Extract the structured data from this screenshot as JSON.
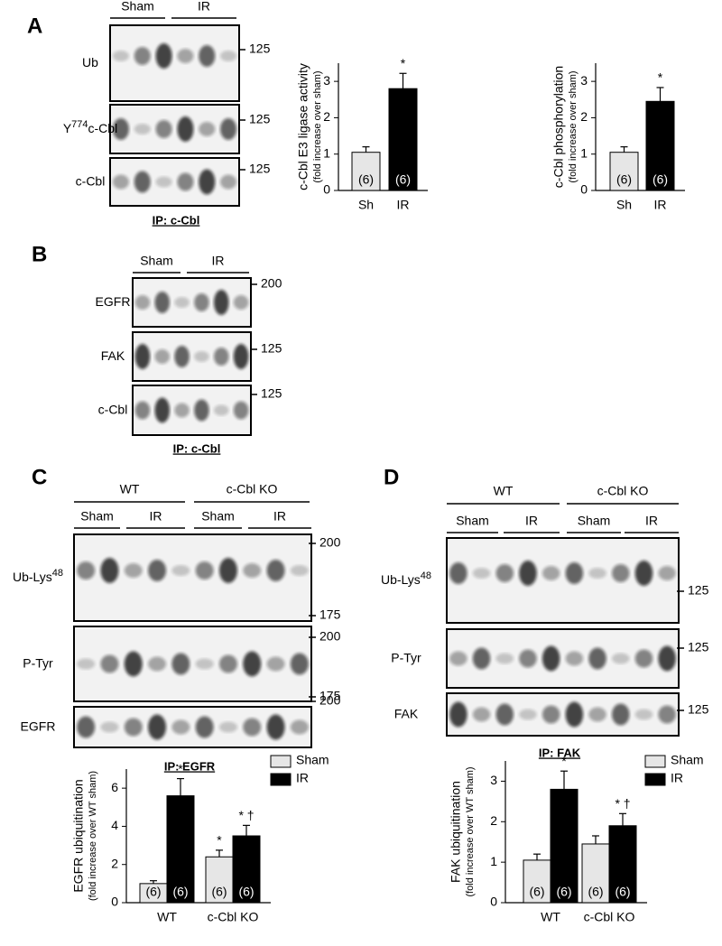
{
  "blots": [
    {
      "letter": "A",
      "groups": [
        {
          "label": "Sham"
        },
        {
          "label": "IR"
        }
      ],
      "rows": [
        {
          "label": "Ub",
          "markers": [
            "125"
          ]
        },
        {
          "label": "Y",
          "sup": "774",
          "suffix": "c-Cbl",
          "markers": [
            "125"
          ]
        },
        {
          "label": "c-Cbl",
          "markers": [
            "125"
          ]
        }
      ],
      "ip": "IP: c-Cbl"
    },
    {
      "letter": "B",
      "groups": [
        {
          "label": "Sham"
        },
        {
          "label": "IR"
        }
      ],
      "rows": [
        {
          "label": "EGFR",
          "markers": [
            "200"
          ]
        },
        {
          "label": "FAK",
          "markers": [
            "125"
          ]
        },
        {
          "label": "c-Cbl",
          "markers": [
            "125"
          ]
        }
      ],
      "ip": "IP: c-Cbl"
    },
    {
      "letter": "C",
      "supergroups": [
        "WT",
        "c-Cbl KO"
      ],
      "groups": [
        {
          "label": "Sham"
        },
        {
          "label": "IR"
        },
        {
          "label": "Sham"
        },
        {
          "label": "IR"
        }
      ],
      "rows": [
        {
          "label": "Ub-Lys",
          "sup": "48",
          "markers": [
            "200",
            "175"
          ]
        },
        {
          "label": "P-Tyr",
          "markers": [
            "200",
            "175"
          ]
        },
        {
          "label": "EGFR",
          "markers": [
            "200"
          ]
        }
      ],
      "ip": "IP: EGFR"
    },
    {
      "letter": "D",
      "supergroups": [
        "WT",
        "c-Cbl KO"
      ],
      "groups": [
        {
          "label": "Sham"
        },
        {
          "label": "IR"
        },
        {
          "label": "Sham"
        },
        {
          "label": "IR"
        }
      ],
      "rows": [
        {
          "label": "Ub-Lys",
          "sup": "48",
          "markers": [
            "125"
          ]
        },
        {
          "label": "P-Tyr",
          "markers": [
            "125"
          ]
        },
        {
          "label": "FAK",
          "markers": [
            "125"
          ]
        }
      ],
      "ip": "IP: FAK"
    }
  ],
  "chart_data": [
    {
      "type": "bar",
      "y_label": "c-Cbl E3 ligase activity",
      "y_sublabel": "(fold increase over sham)",
      "categories": [
        "Sh",
        "IR"
      ],
      "values": [
        1.05,
        2.8
      ],
      "errors": [
        0.15,
        0.42
      ],
      "colors": [
        "#e6e6e6",
        "#000000"
      ],
      "n_labels": [
        "(6)",
        "(6)"
      ],
      "significance": [
        null,
        "*"
      ],
      "ylim": [
        0,
        3.5
      ],
      "yticks": [
        0,
        1,
        2,
        3
      ]
    },
    {
      "type": "bar",
      "y_label": "c-Cbl phosphorylation",
      "y_sublabel": "(fold increase over sham)",
      "categories": [
        "Sh",
        "IR"
      ],
      "values": [
        1.05,
        2.45
      ],
      "errors": [
        0.15,
        0.38
      ],
      "colors": [
        "#e6e6e6",
        "#000000"
      ],
      "n_labels": [
        "(6)",
        "(6)"
      ],
      "significance": [
        null,
        "*"
      ],
      "ylim": [
        0,
        3.5
      ],
      "yticks": [
        0,
        1,
        2,
        3
      ]
    },
    {
      "type": "grouped_bar",
      "y_label": "EGFR ubiquitination",
      "y_sublabel": "(fold increase over WT sham)",
      "categories": [
        "WT",
        "c-Cbl KO"
      ],
      "ylim": [
        0,
        7
      ],
      "yticks": [
        0,
        2,
        4,
        6
      ],
      "legend": "top-right",
      "series": [
        {
          "name": "Sham",
          "color": "#e6e6e6",
          "values": [
            1.0,
            2.4
          ],
          "errors": [
            0.15,
            0.35
          ],
          "n_labels": [
            "(6)",
            "(6)"
          ],
          "significance": [
            null,
            "*"
          ]
        },
        {
          "name": "IR",
          "color": "#000000",
          "values": [
            5.6,
            3.5
          ],
          "errors": [
            0.9,
            0.55
          ],
          "n_labels": [
            "(6)",
            "(6)"
          ],
          "significance": [
            "*",
            "* †"
          ]
        }
      ]
    },
    {
      "type": "grouped_bar",
      "y_label": "FAK ubiquitination",
      "y_sublabel": "(fold increase over WT sham)",
      "categories": [
        "WT",
        "c-Cbl KO"
      ],
      "ylim": [
        0,
        3.5
      ],
      "yticks": [
        0,
        1,
        2,
        3
      ],
      "legend": "top-right",
      "series": [
        {
          "name": "Sham",
          "color": "#e6e6e6",
          "values": [
            1.05,
            1.45
          ],
          "errors": [
            0.15,
            0.2
          ],
          "n_labels": [
            "(6)",
            "(6)"
          ],
          "significance": [
            null,
            null
          ]
        },
        {
          "name": "IR",
          "color": "#000000",
          "values": [
            2.8,
            1.9
          ],
          "errors": [
            0.45,
            0.3
          ],
          "n_labels": [
            "(6)",
            "(6)"
          ],
          "significance": [
            "*",
            "* †"
          ]
        }
      ]
    }
  ]
}
